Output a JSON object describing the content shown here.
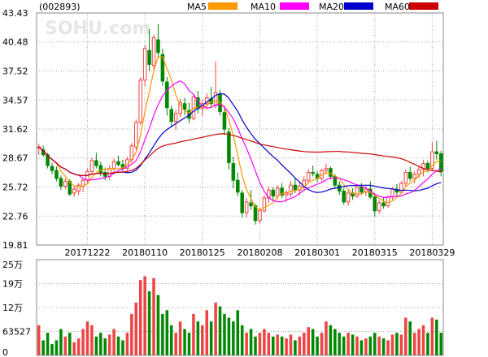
{
  "header": {
    "code": "(002893)",
    "watermark": "SOHU.com"
  },
  "legend": [
    {
      "label": "MA5",
      "color": "#ff9900"
    },
    {
      "label": "MA10",
      "color": "#ff00ff"
    },
    {
      "label": "MA20",
      "color": "#0000cc"
    },
    {
      "label": "MA60",
      "color": "#cc0000"
    }
  ],
  "colors": {
    "up": "#ee4444",
    "down": "#008800",
    "grid": "#aaaaaa"
  },
  "chart_data": {
    "type": "candlestick",
    "price_axis": {
      "ticks": [
        "43.43",
        "40.48",
        "37.52",
        "34.57",
        "31.62",
        "28.67",
        "25.72",
        "22.76",
        "19.81"
      ],
      "range": [
        19.81,
        43.43
      ]
    },
    "date_labels": [
      {
        "label": "20171222",
        "index": 11
      },
      {
        "label": "20180110",
        "index": 24
      },
      {
        "label": "20180125",
        "index": 37
      },
      {
        "label": "20180208",
        "index": 50
      },
      {
        "label": "20180301",
        "index": 63
      },
      {
        "label": "20180315",
        "index": 76
      },
      {
        "label": "20180329",
        "index": 89
      }
    ],
    "volume_axis": {
      "ticks": [
        "25万",
        "19万",
        "12万",
        "63527",
        "0"
      ],
      "range": [
        0,
        254108
      ]
    },
    "candles": [
      [
        29.7,
        30.1,
        29.0,
        29.8
      ],
      [
        29.5,
        29.9,
        28.8,
        29.0
      ],
      [
        29.0,
        29.2,
        27.6,
        27.9
      ],
      [
        27.8,
        28.2,
        27.0,
        27.4
      ],
      [
        27.4,
        27.8,
        26.3,
        26.6
      ],
      [
        26.6,
        26.9,
        25.4,
        25.8
      ],
      [
        25.8,
        26.6,
        25.5,
        26.3
      ],
      [
        26.3,
        26.5,
        24.8,
        25.0
      ],
      [
        25.1,
        25.8,
        24.7,
        25.5
      ],
      [
        25.3,
        26.1,
        24.9,
        25.9
      ],
      [
        25.8,
        26.6,
        25.2,
        26.4
      ],
      [
        26.4,
        27.6,
        26.1,
        27.3
      ],
      [
        27.3,
        28.7,
        27.0,
        28.4
      ],
      [
        28.4,
        29.2,
        27.6,
        27.9
      ],
      [
        27.9,
        28.3,
        26.8,
        27.2
      ],
      [
        27.2,
        27.7,
        26.4,
        26.8
      ],
      [
        26.8,
        27.9,
        26.4,
        27.6
      ],
      [
        27.6,
        28.6,
        27.0,
        28.3
      ],
      [
        28.3,
        28.9,
        27.8,
        28.0
      ],
      [
        28.0,
        28.5,
        27.3,
        27.6
      ],
      [
        27.6,
        28.8,
        27.4,
        28.5
      ],
      [
        28.5,
        30.2,
        28.2,
        29.9
      ],
      [
        29.8,
        32.6,
        29.5,
        32.3
      ],
      [
        32.3,
        36.9,
        32.0,
        36.6
      ],
      [
        36.6,
        40.2,
        36.0,
        39.8
      ],
      [
        39.6,
        41.8,
        37.5,
        38.2
      ],
      [
        38.1,
        41.2,
        37.6,
        40.9
      ],
      [
        40.7,
        42.3,
        38.8,
        39.4
      ],
      [
        39.2,
        39.8,
        36.0,
        36.5
      ],
      [
        36.4,
        36.9,
        33.0,
        33.8
      ],
      [
        33.6,
        34.0,
        31.8,
        32.4
      ],
      [
        32.4,
        33.6,
        31.5,
        33.2
      ],
      [
        33.2,
        34.7,
        32.8,
        34.3
      ],
      [
        34.2,
        34.8,
        33.0,
        33.6
      ],
      [
        33.5,
        34.3,
        32.2,
        32.7
      ],
      [
        32.7,
        35.1,
        32.5,
        34.9
      ],
      [
        34.8,
        35.5,
        33.2,
        33.7
      ],
      [
        33.7,
        34.6,
        32.9,
        34.2
      ],
      [
        34.2,
        35.3,
        33.6,
        34.8
      ],
      [
        34.7,
        35.9,
        33.8,
        34.2
      ],
      [
        34.0,
        38.5,
        33.7,
        35.3
      ],
      [
        35.2,
        35.6,
        33.0,
        33.4
      ],
      [
        33.3,
        34.0,
        31.0,
        31.6
      ],
      [
        31.3,
        31.7,
        27.5,
        28.2
      ],
      [
        28.1,
        28.8,
        25.6,
        26.4
      ],
      [
        26.4,
        27.2,
        24.8,
        25.2
      ],
      [
        25.1,
        25.4,
        22.6,
        23.1
      ],
      [
        23.1,
        24.6,
        22.6,
        24.2
      ],
      [
        24.1,
        25.4,
        23.4,
        23.8
      ],
      [
        23.8,
        24.0,
        21.9,
        22.3
      ],
      [
        22.3,
        23.6,
        22.0,
        23.3
      ],
      [
        23.3,
        24.9,
        23.1,
        24.6
      ],
      [
        24.6,
        25.8,
        24.1,
        25.4
      ],
      [
        25.4,
        25.7,
        24.3,
        24.8
      ],
      [
        24.8,
        25.9,
        24.5,
        25.6
      ],
      [
        25.6,
        26.1,
        24.6,
        24.9
      ],
      [
        24.9,
        25.4,
        24.2,
        25.1
      ],
      [
        25.0,
        26.3,
        24.7,
        25.9
      ],
      [
        25.9,
        26.6,
        25.1,
        25.4
      ],
      [
        25.4,
        26.2,
        24.9,
        25.8
      ],
      [
        25.8,
        26.8,
        25.3,
        26.4
      ],
      [
        26.4,
        27.5,
        26.1,
        27.2
      ],
      [
        27.2,
        27.9,
        26.8,
        27.1
      ],
      [
        27.0,
        27.3,
        26.2,
        26.6
      ],
      [
        26.6,
        27.6,
        26.3,
        27.4
      ],
      [
        27.4,
        28.1,
        27.0,
        27.6
      ],
      [
        27.6,
        27.8,
        26.5,
        26.8
      ],
      [
        26.8,
        27.0,
        25.6,
        25.9
      ],
      [
        25.9,
        26.3,
        24.9,
        25.3
      ],
      [
        25.3,
        25.6,
        23.9,
        24.2
      ],
      [
        24.2,
        25.4,
        23.8,
        25.1
      ],
      [
        25.1,
        25.6,
        24.4,
        24.8
      ],
      [
        24.8,
        25.9,
        24.6,
        25.7
      ],
      [
        25.7,
        26.1,
        24.9,
        25.2
      ],
      [
        25.2,
        25.9,
        24.8,
        25.5
      ],
      [
        25.5,
        26.3,
        24.5,
        24.7
      ],
      [
        24.7,
        25.1,
        22.7,
        23.3
      ],
      [
        23.3,
        24.4,
        23.0,
        24.1
      ],
      [
        24.1,
        24.6,
        23.5,
        23.8
      ],
      [
        23.8,
        24.9,
        23.6,
        24.7
      ],
      [
        24.7,
        25.7,
        24.4,
        25.5
      ],
      [
        25.5,
        26.0,
        24.8,
        25.2
      ],
      [
        25.2,
        26.3,
        25.0,
        26.1
      ],
      [
        26.1,
        27.5,
        25.8,
        27.2
      ],
      [
        27.2,
        27.8,
        26.3,
        26.6
      ],
      [
        26.6,
        27.3,
        26.1,
        27.0
      ],
      [
        27.0,
        27.9,
        26.6,
        27.5
      ],
      [
        27.5,
        28.5,
        26.8,
        28.1
      ],
      [
        28.1,
        28.4,
        27.2,
        27.6
      ],
      [
        27.6,
        30.3,
        27.4,
        29.3
      ],
      [
        29.3,
        30.4,
        28.5,
        29.1
      ],
      [
        29.1,
        29.4,
        26.8,
        27.3
      ]
    ],
    "volumes": [
      80000,
      40000,
      60000,
      30000,
      40000,
      70000,
      50000,
      60000,
      35000,
      45000,
      70000,
      90000,
      80000,
      50000,
      60000,
      45000,
      55000,
      70000,
      50000,
      40000,
      60000,
      110000,
      140000,
      200000,
      210000,
      170000,
      205000,
      160000,
      110000,
      120000,
      80000,
      60000,
      90000,
      70000,
      60000,
      110000,
      90000,
      80000,
      120000,
      90000,
      140000,
      130000,
      110000,
      100000,
      90000,
      120000,
      80000,
      60000,
      70000,
      50000,
      60000,
      70000,
      60000,
      50000,
      55000,
      50000,
      45000,
      55000,
      40000,
      50000,
      60000,
      75000,
      70000,
      50000,
      60000,
      90000,
      80000,
      70000,
      60000,
      50000,
      60000,
      55000,
      50000,
      40000,
      45000,
      50000,
      60000,
      50000,
      45000,
      40000,
      55000,
      60000,
      55000,
      100000,
      90000,
      60000,
      70000,
      80000,
      60000,
      100000,
      95000,
      60000
    ]
  }
}
